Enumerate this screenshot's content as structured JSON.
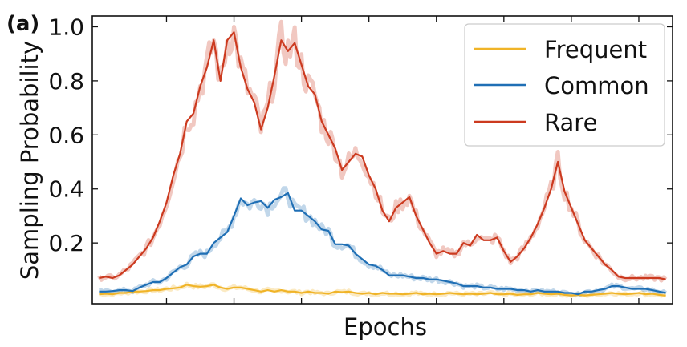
{
  "panel_label": "(a)",
  "chart_data": {
    "type": "line",
    "title": "",
    "xlabel": "Epochs",
    "ylabel": "Sampling Probability",
    "xlim": [
      -1,
      85
    ],
    "ylim": [
      -0.025,
      1.04
    ],
    "yticks": [
      0.2,
      0.4,
      0.6,
      0.8,
      1.0
    ],
    "ytick_labels": [
      "0.2",
      "0.4",
      "0.6",
      "0.8",
      "1.0"
    ],
    "xticks": [
      10,
      20,
      30,
      40,
      50,
      60,
      70,
      80
    ],
    "grid": false,
    "legend_position": "top-right",
    "x": [
      0,
      1,
      2,
      3,
      4,
      5,
      6,
      7,
      8,
      9,
      10,
      11,
      12,
      13,
      14,
      15,
      16,
      17,
      18,
      19,
      20,
      21,
      22,
      23,
      24,
      25,
      26,
      27,
      28,
      29,
      30,
      31,
      32,
      33,
      34,
      35,
      36,
      37,
      38,
      39,
      40,
      41,
      42,
      43,
      44,
      45,
      46,
      47,
      48,
      49,
      50,
      51,
      52,
      53,
      54,
      55,
      56,
      57,
      58,
      59,
      60,
      61,
      62,
      63,
      64,
      65,
      66,
      67,
      68,
      69,
      70,
      71,
      72,
      73,
      74,
      75,
      76,
      77,
      78,
      79,
      80,
      81,
      82,
      83,
      84
    ],
    "series": [
      {
        "name": "Frequent",
        "color": "#f0b428",
        "values": [
          0.01,
          0.012,
          0.01,
          0.015,
          0.015,
          0.02,
          0.02,
          0.022,
          0.025,
          0.025,
          0.03,
          0.032,
          0.035,
          0.045,
          0.04,
          0.038,
          0.04,
          0.045,
          0.035,
          0.03,
          0.035,
          0.035,
          0.03,
          0.025,
          0.02,
          0.025,
          0.02,
          0.025,
          0.02,
          0.02,
          0.015,
          0.02,
          0.015,
          0.015,
          0.012,
          0.02,
          0.018,
          0.02,
          0.015,
          0.012,
          0.015,
          0.01,
          0.015,
          0.012,
          0.012,
          0.01,
          0.012,
          0.015,
          0.01,
          0.012,
          0.01,
          0.012,
          0.015,
          0.012,
          0.01,
          0.012,
          0.01,
          0.012,
          0.015,
          0.01,
          0.01,
          0.012,
          0.008,
          0.01,
          0.01,
          0.015,
          0.012,
          0.01,
          0.012,
          0.008,
          0.006,
          0.008,
          0.006,
          0.008,
          0.01,
          0.012,
          0.015,
          0.012,
          0.01,
          0.012,
          0.015,
          0.01,
          0.012,
          0.008,
          0.005
        ]
      },
      {
        "name": "Common",
        "color": "#1f6fb5",
        "values": [
          0.02,
          0.02,
          0.022,
          0.025,
          0.025,
          0.022,
          0.035,
          0.045,
          0.055,
          0.055,
          0.07,
          0.09,
          0.11,
          0.12,
          0.15,
          0.16,
          0.16,
          0.2,
          0.22,
          0.24,
          0.3,
          0.365,
          0.34,
          0.35,
          0.355,
          0.33,
          0.36,
          0.37,
          0.385,
          0.32,
          0.32,
          0.3,
          0.28,
          0.25,
          0.245,
          0.195,
          0.195,
          0.19,
          0.16,
          0.14,
          0.12,
          0.115,
          0.1,
          0.08,
          0.08,
          0.08,
          0.075,
          0.07,
          0.07,
          0.065,
          0.065,
          0.06,
          0.055,
          0.05,
          0.04,
          0.04,
          0.04,
          0.035,
          0.035,
          0.03,
          0.03,
          0.03,
          0.025,
          0.025,
          0.02,
          0.025,
          0.02,
          0.02,
          0.02,
          0.015,
          0.015,
          0.01,
          0.02,
          0.02,
          0.025,
          0.03,
          0.04,
          0.04,
          0.035,
          0.03,
          0.03,
          0.03,
          0.025,
          0.02,
          0.015
        ]
      },
      {
        "name": "Rare",
        "color": "#cc3a1f",
        "values": [
          0.07,
          0.075,
          0.07,
          0.08,
          0.1,
          0.12,
          0.15,
          0.18,
          0.22,
          0.28,
          0.35,
          0.45,
          0.53,
          0.65,
          0.68,
          0.78,
          0.85,
          0.95,
          0.8,
          0.95,
          0.98,
          0.85,
          0.77,
          0.72,
          0.62,
          0.7,
          0.82,
          0.95,
          0.91,
          0.94,
          0.86,
          0.78,
          0.75,
          0.65,
          0.6,
          0.55,
          0.47,
          0.5,
          0.53,
          0.52,
          0.45,
          0.4,
          0.32,
          0.28,
          0.33,
          0.35,
          0.37,
          0.3,
          0.25,
          0.2,
          0.16,
          0.17,
          0.16,
          0.16,
          0.2,
          0.19,
          0.23,
          0.21,
          0.21,
          0.22,
          0.17,
          0.13,
          0.15,
          0.18,
          0.22,
          0.27,
          0.33,
          0.4,
          0.5,
          0.39,
          0.33,
          0.27,
          0.21,
          0.18,
          0.15,
          0.12,
          0.1,
          0.075,
          0.07,
          0.07,
          0.07,
          0.07,
          0.07,
          0.07,
          0.065
        ]
      }
    ]
  }
}
